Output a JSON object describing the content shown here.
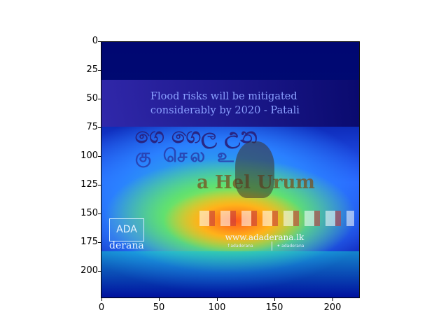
{
  "image": {
    "headline_line1": "Flood risks will be mitigated",
    "headline_line2": "considerably by 2020 - Patali",
    "strip_text_1": "ගෙ ගෙල උන",
    "strip_text_2": "கு செல உ",
    "strip_text_3": "a Hel Urum",
    "logo_text": "ADA",
    "logo_subtext": "derana",
    "url": "www.adaderana.lk",
    "social_1": "adaderana",
    "social_2": "adaderana"
  },
  "axes": {
    "y_ticks": [
      "0",
      "25",
      "50",
      "75",
      "100",
      "125",
      "150",
      "175",
      "200"
    ],
    "x_ticks": [
      "0",
      "50",
      "100",
      "150",
      "200"
    ]
  }
}
